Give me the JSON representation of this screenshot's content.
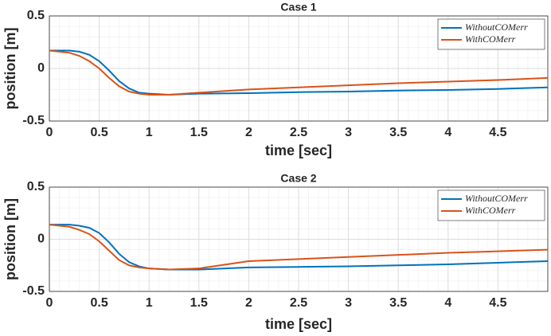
{
  "chart_data": [
    {
      "type": "line",
      "title": "Case 1",
      "xlabel": "time [sec]",
      "ylabel": "position [m]",
      "x": [
        0,
        0.2,
        0.3,
        0.4,
        0.5,
        0.6,
        0.7,
        0.8,
        0.9,
        1,
        1.2,
        1.5,
        2,
        2.5,
        3,
        3.5,
        4,
        4.5,
        5
      ],
      "series": [
        {
          "name": "WithoutCOMerr",
          "color": "#0072bd",
          "values": [
            0.17,
            0.17,
            0.16,
            0.13,
            0.07,
            -0.02,
            -0.12,
            -0.19,
            -0.23,
            -0.24,
            -0.25,
            -0.24,
            -0.235,
            -0.225,
            -0.22,
            -0.21,
            -0.205,
            -0.195,
            -0.18
          ]
        },
        {
          "name": "WithCOMerr",
          "color": "#d95319",
          "values": [
            0.17,
            0.15,
            0.12,
            0.07,
            0.0,
            -0.09,
            -0.17,
            -0.22,
            -0.24,
            -0.25,
            -0.25,
            -0.23,
            -0.2,
            -0.18,
            -0.16,
            -0.14,
            -0.125,
            -0.11,
            -0.09
          ]
        }
      ],
      "xlim": [
        0,
        5
      ],
      "xticks": [
        0,
        0.5,
        1,
        1.5,
        2,
        2.5,
        3,
        3.5,
        4,
        4.5
      ],
      "ylim": [
        -0.5,
        0.5
      ],
      "yticks": [
        -0.5,
        0,
        0.5
      ],
      "grid": true,
      "minor_grid": true,
      "legend": "upper right"
    },
    {
      "type": "line",
      "title": "Case 2",
      "xlabel": "time [sec]",
      "ylabel": "position [m]",
      "x": [
        0,
        0.2,
        0.3,
        0.4,
        0.5,
        0.6,
        0.7,
        0.8,
        0.9,
        1,
        1.2,
        1.5,
        2,
        2.5,
        3,
        3.5,
        4,
        4.5,
        5
      ],
      "series": [
        {
          "name": "WithoutCOMerr",
          "color": "#0072bd",
          "values": [
            0.14,
            0.14,
            0.13,
            0.11,
            0.06,
            -0.03,
            -0.14,
            -0.22,
            -0.26,
            -0.28,
            -0.29,
            -0.29,
            -0.27,
            -0.265,
            -0.26,
            -0.25,
            -0.24,
            -0.225,
            -0.21
          ]
        },
        {
          "name": "WithCOMerr",
          "color": "#d95319",
          "values": [
            0.14,
            0.12,
            0.09,
            0.05,
            -0.02,
            -0.11,
            -0.2,
            -0.25,
            -0.27,
            -0.28,
            -0.29,
            -0.28,
            -0.21,
            -0.19,
            -0.17,
            -0.15,
            -0.13,
            -0.115,
            -0.1
          ]
        }
      ],
      "xlim": [
        0,
        5
      ],
      "xticks": [
        0,
        0.5,
        1,
        1.5,
        2,
        2.5,
        3,
        3.5,
        4,
        4.5
      ],
      "ylim": [
        -0.5,
        0.5
      ],
      "yticks": [
        -0.5,
        0,
        0.5
      ],
      "grid": true,
      "minor_grid": true,
      "legend": "upper right"
    }
  ]
}
